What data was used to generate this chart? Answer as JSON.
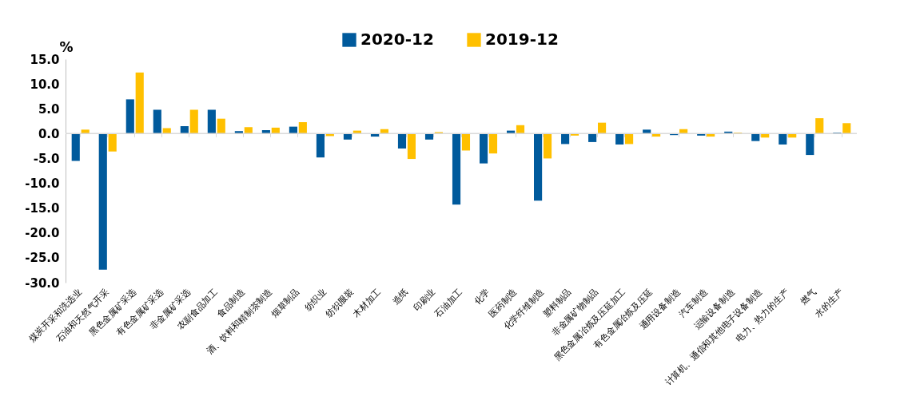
{
  "chart_data": {
    "type": "bar",
    "ylabel": "%",
    "categories": [
      "煤炭开采和洗选业",
      "石油和天然气开采",
      "黑色金属矿采选",
      "有色金属矿采选",
      "非金属矿采选",
      "农副食品加工",
      "食品制造",
      "酒、饮料和精制茶制造",
      "烟草制品",
      "纺织业",
      "纺织服装",
      "木材加工",
      "造纸",
      "印刷业",
      "石油加工",
      "化学",
      "医药制造",
      "化学纤维制造",
      "塑料制品",
      "非金属矿物制品",
      "黑色金属冶炼及压延加工",
      "有色金属冶炼及压延",
      "通用设备制造",
      "汽车制造",
      "运输设备制造",
      "计算机、通信和其他电子设备制造",
      "电力、热力的生产",
      "燃气",
      "水的生产"
    ],
    "series": [
      {
        "name": "2020-12",
        "color": "#005a9c",
        "values": [
          -5.5,
          -27.4,
          6.9,
          4.8,
          1.5,
          4.8,
          0.5,
          0.7,
          1.4,
          -4.8,
          -1.2,
          -0.6,
          -3.0,
          -1.2,
          -14.3,
          -6.0,
          0.6,
          -13.5,
          -2.1,
          -1.7,
          -2.2,
          0.8,
          -0.3,
          -0.4,
          0.4,
          -1.5,
          -2.2,
          -4.3,
          0.2
        ]
      },
      {
        "name": "2019-12",
        "color": "#ffc000",
        "values": [
          0.8,
          -3.6,
          12.3,
          1.1,
          4.8,
          3.0,
          1.3,
          1.2,
          2.3,
          -0.5,
          0.6,
          0.9,
          -5.1,
          0.3,
          -3.4,
          -4.0,
          1.7,
          -5.0,
          -0.4,
          2.2,
          -2.1,
          -0.6,
          0.9,
          -0.6,
          0.2,
          -0.8,
          -0.8,
          3.1,
          2.1
        ]
      }
    ],
    "ylim": [
      -30,
      15
    ],
    "yticks": [
      {
        "value": -30,
        "label": "-30.0"
      },
      {
        "value": -25,
        "label": "-25.0"
      },
      {
        "value": -20,
        "label": "-20.0"
      },
      {
        "value": -15,
        "label": "-15.0"
      },
      {
        "value": -10,
        "label": "-10.0"
      },
      {
        "value": -5,
        "label": "-5.0"
      },
      {
        "value": 0,
        "label": "0.0"
      },
      {
        "value": 5,
        "label": "5.0"
      },
      {
        "value": 10,
        "label": "10.0"
      },
      {
        "value": 15,
        "label": "15.0"
      }
    ],
    "ref_lines": [
      {
        "axis": "y",
        "value": 0,
        "color": "#d9d9d9"
      }
    ],
    "grid": false,
    "legend": "top"
  }
}
